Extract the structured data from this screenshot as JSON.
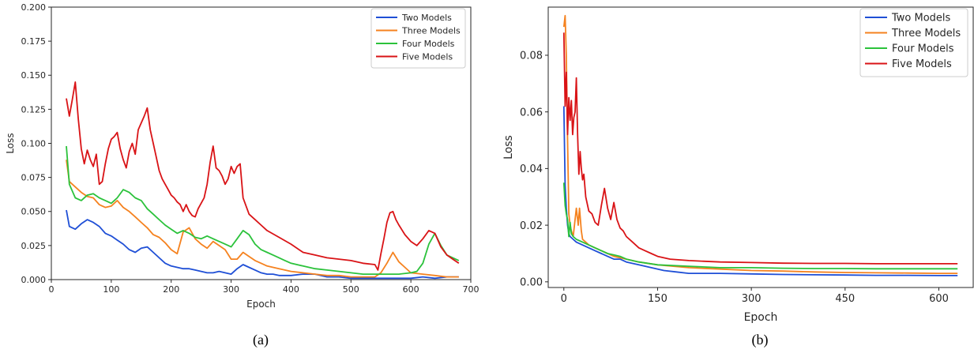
{
  "colors": {
    "two": "#1f4fd6",
    "three": "#f5821f",
    "four": "#2bc23b",
    "five": "#d91316"
  },
  "chart_data": [
    {
      "type": "line",
      "caption": "(a)",
      "xlabel": "Epoch",
      "ylabel": "Loss",
      "xlim": [
        0,
        700
      ],
      "ylim": [
        0,
        0.2
      ],
      "xticks": [
        0,
        100,
        200,
        300,
        400,
        500,
        600,
        700
      ],
      "xtick_labels": [
        "0",
        "100",
        "200",
        "300",
        "400",
        "500",
        "600",
        "700"
      ],
      "yticks": [
        0,
        0.025,
        0.05,
        0.075,
        0.1,
        0.125,
        0.15,
        0.175,
        0.2
      ],
      "ytick_labels": [
        "0.000",
        "0.025",
        "0.050",
        "0.075",
        "0.100",
        "0.125",
        "0.150",
        "0.175",
        "0.200"
      ],
      "legend": "top-right",
      "series": [
        {
          "name": "Two Models",
          "color_key": "two",
          "x": [
            25,
            30,
            40,
            50,
            60,
            70,
            80,
            90,
            100,
            110,
            120,
            130,
            140,
            150,
            160,
            170,
            180,
            190,
            200,
            210,
            220,
            230,
            240,
            250,
            260,
            270,
            280,
            290,
            300,
            310,
            320,
            330,
            340,
            350,
            360,
            370,
            380,
            390,
            400,
            420,
            440,
            460,
            480,
            500,
            520,
            540,
            560,
            580,
            600,
            620,
            640,
            660,
            680
          ],
          "y": [
            0.051,
            0.039,
            0.037,
            0.041,
            0.044,
            0.042,
            0.039,
            0.034,
            0.032,
            0.029,
            0.026,
            0.022,
            0.02,
            0.023,
            0.024,
            0.02,
            0.016,
            0.012,
            0.01,
            0.009,
            0.008,
            0.008,
            0.007,
            0.006,
            0.005,
            0.005,
            0.006,
            0.005,
            0.004,
            0.008,
            0.011,
            0.009,
            0.007,
            0.005,
            0.004,
            0.004,
            0.003,
            0.003,
            0.003,
            0.004,
            0.004,
            0.002,
            0.002,
            0.001,
            0.001,
            0.001,
            0.001,
            0.001,
            0.001,
            0.002,
            0.001,
            0.002,
            0.002
          ]
        },
        {
          "name": "Three Models",
          "color_key": "three",
          "x": [
            25,
            30,
            40,
            50,
            60,
            70,
            80,
            90,
            100,
            110,
            120,
            130,
            140,
            150,
            160,
            170,
            180,
            190,
            200,
            210,
            220,
            230,
            240,
            250,
            260,
            270,
            280,
            290,
            300,
            310,
            320,
            330,
            340,
            350,
            360,
            380,
            400,
            420,
            440,
            460,
            480,
            500,
            520,
            540,
            550,
            560,
            570,
            580,
            590,
            600,
            620,
            640,
            660,
            680
          ],
          "y": [
            0.088,
            0.072,
            0.068,
            0.064,
            0.061,
            0.06,
            0.055,
            0.053,
            0.054,
            0.058,
            0.053,
            0.05,
            0.046,
            0.042,
            0.038,
            0.033,
            0.031,
            0.027,
            0.022,
            0.019,
            0.035,
            0.038,
            0.03,
            0.026,
            0.023,
            0.028,
            0.025,
            0.022,
            0.015,
            0.015,
            0.02,
            0.017,
            0.014,
            0.012,
            0.01,
            0.008,
            0.006,
            0.005,
            0.004,
            0.003,
            0.003,
            0.002,
            0.002,
            0.002,
            0.005,
            0.012,
            0.02,
            0.013,
            0.009,
            0.005,
            0.004,
            0.003,
            0.002,
            0.002
          ]
        },
        {
          "name": "Four Models",
          "color_key": "four",
          "x": [
            25,
            30,
            40,
            50,
            60,
            70,
            80,
            90,
            100,
            110,
            120,
            130,
            140,
            150,
            160,
            170,
            180,
            190,
            200,
            210,
            220,
            230,
            240,
            250,
            260,
            270,
            280,
            290,
            300,
            310,
            320,
            330,
            340,
            350,
            360,
            370,
            380,
            390,
            400,
            420,
            440,
            460,
            480,
            500,
            520,
            540,
            560,
            580,
            600,
            610,
            620,
            630,
            640,
            650,
            660,
            680
          ],
          "y": [
            0.098,
            0.07,
            0.06,
            0.058,
            0.062,
            0.063,
            0.06,
            0.058,
            0.056,
            0.06,
            0.066,
            0.064,
            0.06,
            0.058,
            0.052,
            0.048,
            0.044,
            0.04,
            0.037,
            0.034,
            0.036,
            0.034,
            0.031,
            0.03,
            0.032,
            0.03,
            0.028,
            0.026,
            0.024,
            0.03,
            0.036,
            0.033,
            0.026,
            0.022,
            0.02,
            0.018,
            0.016,
            0.014,
            0.012,
            0.01,
            0.008,
            0.007,
            0.006,
            0.005,
            0.004,
            0.004,
            0.004,
            0.004,
            0.005,
            0.006,
            0.012,
            0.026,
            0.034,
            0.025,
            0.018,
            0.014
          ]
        },
        {
          "name": "Five Models",
          "color_key": "five",
          "x": [
            25,
            30,
            35,
            40,
            45,
            50,
            55,
            60,
            65,
            70,
            75,
            80,
            85,
            90,
            95,
            100,
            105,
            110,
            115,
            120,
            125,
            130,
            135,
            140,
            145,
            150,
            155,
            160,
            165,
            170,
            175,
            180,
            185,
            190,
            195,
            200,
            205,
            210,
            215,
            220,
            225,
            230,
            235,
            240,
            245,
            250,
            255,
            260,
            265,
            270,
            275,
            280,
            285,
            290,
            295,
            300,
            305,
            310,
            315,
            320,
            330,
            340,
            350,
            360,
            380,
            400,
            420,
            440,
            460,
            480,
            500,
            520,
            540,
            545,
            550,
            555,
            560,
            565,
            570,
            575,
            580,
            590,
            600,
            610,
            620,
            630,
            640,
            650,
            660,
            670,
            680
          ],
          "y": [
            0.133,
            0.12,
            0.132,
            0.145,
            0.118,
            0.096,
            0.085,
            0.095,
            0.088,
            0.083,
            0.092,
            0.07,
            0.072,
            0.085,
            0.096,
            0.103,
            0.105,
            0.108,
            0.096,
            0.088,
            0.082,
            0.094,
            0.1,
            0.092,
            0.11,
            0.115,
            0.12,
            0.126,
            0.11,
            0.1,
            0.09,
            0.08,
            0.074,
            0.07,
            0.066,
            0.062,
            0.06,
            0.057,
            0.055,
            0.05,
            0.055,
            0.05,
            0.047,
            0.046,
            0.052,
            0.056,
            0.06,
            0.07,
            0.086,
            0.098,
            0.082,
            0.08,
            0.076,
            0.07,
            0.074,
            0.083,
            0.078,
            0.083,
            0.085,
            0.06,
            0.048,
            0.044,
            0.04,
            0.036,
            0.031,
            0.026,
            0.02,
            0.018,
            0.016,
            0.015,
            0.014,
            0.012,
            0.011,
            0.007,
            0.019,
            0.03,
            0.042,
            0.049,
            0.05,
            0.044,
            0.04,
            0.033,
            0.028,
            0.025,
            0.03,
            0.036,
            0.034,
            0.024,
            0.018,
            0.015,
            0.012
          ]
        }
      ]
    },
    {
      "type": "line",
      "caption": "(b)",
      "xlabel": "Epoch",
      "ylabel": "Loss",
      "xlim": [
        -25,
        655
      ],
      "ylim": [
        -0.002,
        0.097
      ],
      "xticks": [
        0,
        150,
        300,
        450,
        600
      ],
      "xtick_labels": [
        "0",
        "150",
        "300",
        "450",
        "600"
      ],
      "yticks": [
        0,
        0.02,
        0.04,
        0.06,
        0.08
      ],
      "ytick_labels": [
        "0.00",
        "0.02",
        "0.04",
        "0.06",
        "0.08"
      ],
      "legend": "top-right",
      "series": [
        {
          "name": "Two Models",
          "color_key": "two",
          "x": [
            0,
            2,
            4,
            6,
            8,
            10,
            15,
            20,
            30,
            40,
            50,
            60,
            70,
            80,
            90,
            100,
            120,
            140,
            160,
            180,
            200,
            250,
            300,
            350,
            400,
            450,
            500,
            550,
            600,
            630
          ],
          "y": [
            0.062,
            0.034,
            0.026,
            0.02,
            0.017,
            0.016,
            0.015,
            0.014,
            0.013,
            0.012,
            0.011,
            0.01,
            0.009,
            0.008,
            0.008,
            0.007,
            0.006,
            0.005,
            0.004,
            0.0035,
            0.003,
            0.003,
            0.0028,
            0.0026,
            0.0025,
            0.0024,
            0.0023,
            0.0023,
            0.0022,
            0.0022
          ]
        },
        {
          "name": "Three Models",
          "color_key": "three",
          "x": [
            0,
            2,
            4,
            6,
            8,
            10,
            12,
            15,
            20,
            23,
            25,
            28,
            30,
            35,
            40,
            50,
            60,
            70,
            80,
            100,
            120,
            150,
            200,
            250,
            300,
            350,
            400,
            450,
            500,
            550,
            600,
            630
          ],
          "y": [
            0.09,
            0.094,
            0.08,
            0.05,
            0.024,
            0.02,
            0.018,
            0.016,
            0.026,
            0.02,
            0.026,
            0.018,
            0.015,
            0.014,
            0.013,
            0.012,
            0.011,
            0.01,
            0.009,
            0.008,
            0.007,
            0.006,
            0.005,
            0.0045,
            0.004,
            0.0038,
            0.0035,
            0.0033,
            0.0032,
            0.0031,
            0.003,
            0.003
          ]
        },
        {
          "name": "Four Models",
          "color_key": "four",
          "x": [
            0,
            2,
            4,
            6,
            8,
            10,
            12,
            15,
            20,
            30,
            40,
            50,
            60,
            70,
            80,
            90,
            100,
            120,
            150,
            200,
            250,
            300,
            350,
            400,
            450,
            500,
            550,
            600,
            630
          ],
          "y": [
            0.035,
            0.027,
            0.024,
            0.022,
            0.016,
            0.021,
            0.017,
            0.016,
            0.015,
            0.014,
            0.013,
            0.012,
            0.011,
            0.01,
            0.0095,
            0.009,
            0.008,
            0.007,
            0.006,
            0.0055,
            0.005,
            0.005,
            0.0048,
            0.0047,
            0.0047,
            0.0046,
            0.0046,
            0.0046,
            0.0046
          ]
        },
        {
          "name": "Five Models",
          "color_key": "five",
          "x": [
            0,
            2,
            4,
            6,
            8,
            10,
            12,
            14,
            16,
            18,
            20,
            22,
            24,
            26,
            28,
            30,
            32,
            35,
            40,
            45,
            50,
            55,
            60,
            65,
            70,
            75,
            80,
            85,
            90,
            95,
            100,
            110,
            120,
            130,
            140,
            150,
            170,
            200,
            250,
            300,
            350,
            400,
            450,
            500,
            550,
            600,
            630
          ],
          "y": [
            0.088,
            0.062,
            0.074,
            0.052,
            0.065,
            0.057,
            0.064,
            0.052,
            0.058,
            0.06,
            0.072,
            0.052,
            0.038,
            0.046,
            0.04,
            0.036,
            0.038,
            0.03,
            0.025,
            0.024,
            0.021,
            0.02,
            0.027,
            0.033,
            0.026,
            0.022,
            0.028,
            0.022,
            0.019,
            0.018,
            0.016,
            0.014,
            0.012,
            0.011,
            0.01,
            0.009,
            0.008,
            0.0075,
            0.007,
            0.0068,
            0.0066,
            0.0065,
            0.0065,
            0.0064,
            0.0064,
            0.0064,
            0.0064
          ]
        }
      ]
    }
  ]
}
